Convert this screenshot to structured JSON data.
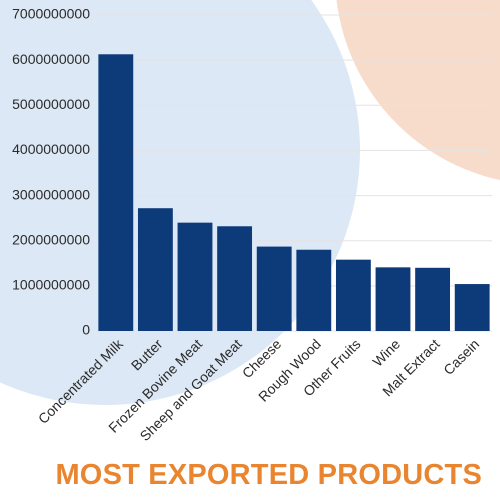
{
  "chart_data": {
    "type": "bar",
    "title": "MOST EXPORTED PRODUCTS",
    "xlabel": "",
    "ylabel": "",
    "categories": [
      "Concentrated Milk",
      "Butter",
      "Frozen Bovine Meat",
      "Sheep and Goat Meat",
      "Cheese",
      "Rough Wood",
      "Other Fruits",
      "Wine",
      "Malt Extract",
      "Casein"
    ],
    "values": [
      6130000000,
      2720000000,
      2400000000,
      2320000000,
      1870000000,
      1800000000,
      1580000000,
      1410000000,
      1400000000,
      1040000000
    ],
    "ylim": [
      0,
      7000000000
    ],
    "yticks": [
      0,
      1000000000,
      2000000000,
      3000000000,
      4000000000,
      5000000000,
      6000000000,
      7000000000
    ],
    "ytick_labels": [
      "0",
      "1000000000",
      "2000000000",
      "3000000000",
      "4000000000",
      "5000000000",
      "6000000000",
      "7000000000"
    ],
    "grid": true,
    "legend": "none",
    "colors": {
      "bar": "#0d3b7a",
      "title": "#e9852f",
      "background_blue": "#dce8f5",
      "background_peach": "#f8dccb"
    }
  }
}
